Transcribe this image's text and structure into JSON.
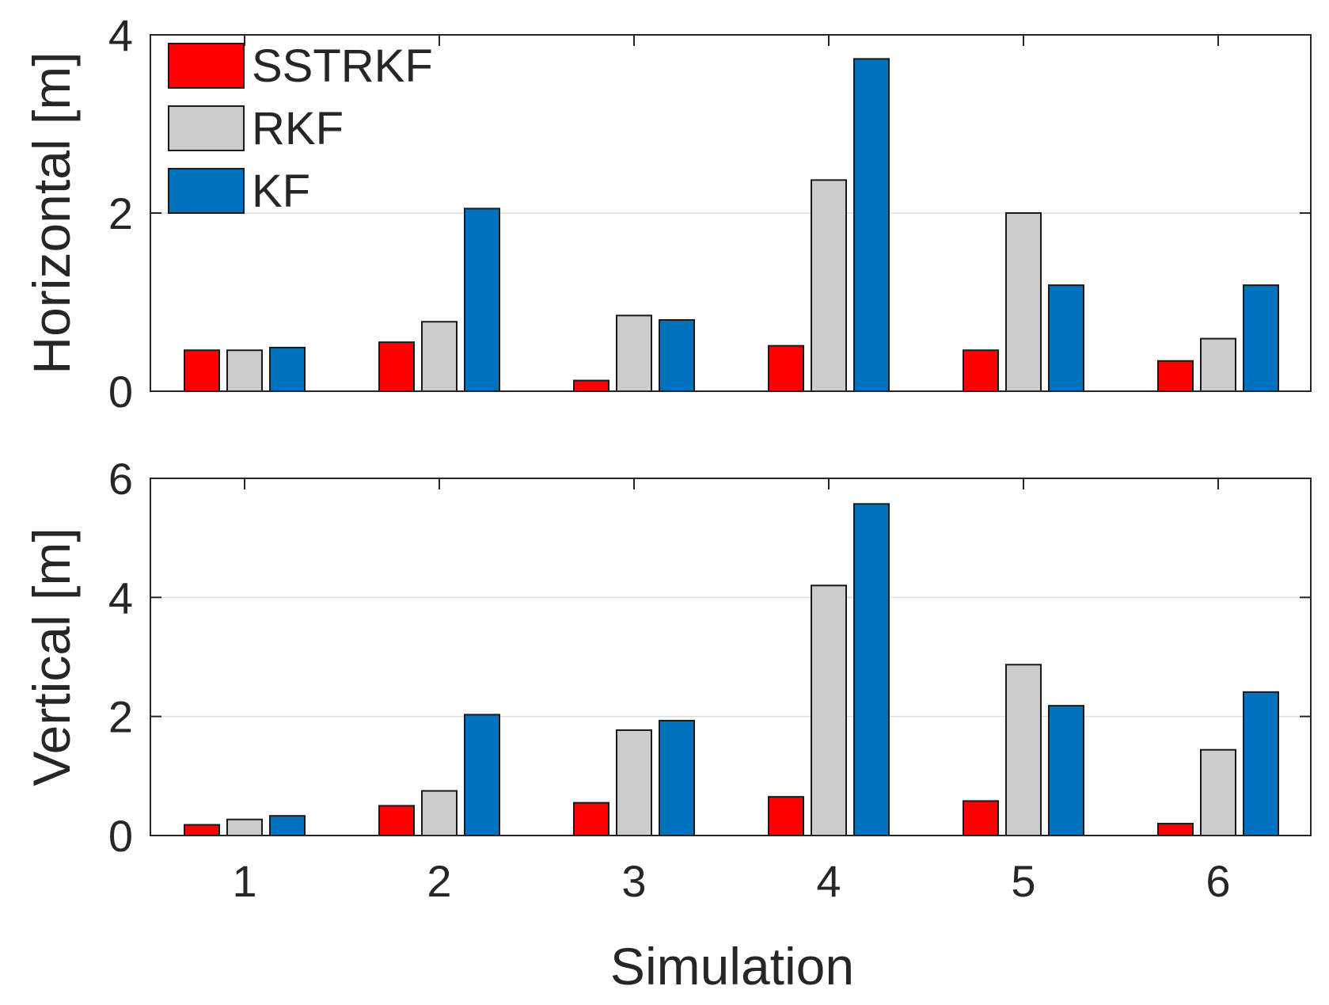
{
  "chart_data": [
    {
      "type": "bar",
      "panel": "top",
      "categories": [
        "1",
        "2",
        "3",
        "4",
        "5",
        "6"
      ],
      "series": [
        {
          "name": "SSTRKF",
          "color": "#ff0000",
          "values": [
            0.46,
            0.55,
            0.12,
            0.51,
            0.46,
            0.34
          ]
        },
        {
          "name": "RKF",
          "color": "#cccccc",
          "values": [
            0.46,
            0.78,
            0.85,
            2.37,
            2.0,
            0.59
          ]
        },
        {
          "name": "KF",
          "color": "#0072bd",
          "values": [
            0.49,
            2.05,
            0.8,
            3.73,
            1.19,
            1.19
          ]
        }
      ],
      "ylabel": "Horizontal [m]",
      "ylim": [
        0,
        4
      ],
      "yticks": [
        "0",
        "2",
        "4"
      ],
      "grid": true,
      "legend": {
        "position": "top-left",
        "entries": [
          "SSTRKF",
          "RKF",
          "KF"
        ]
      }
    },
    {
      "type": "bar",
      "panel": "bottom",
      "categories": [
        "1",
        "2",
        "3",
        "4",
        "5",
        "6"
      ],
      "series": [
        {
          "name": "SSTRKF",
          "color": "#ff0000",
          "values": [
            0.18,
            0.5,
            0.55,
            0.65,
            0.58,
            0.2
          ]
        },
        {
          "name": "RKF",
          "color": "#cccccc",
          "values": [
            0.27,
            0.75,
            1.77,
            4.2,
            2.87,
            1.44
          ]
        },
        {
          "name": "KF",
          "color": "#0072bd",
          "values": [
            0.33,
            2.03,
            1.93,
            5.57,
            2.18,
            2.41
          ]
        }
      ],
      "xlabel": "Simulation",
      "ylabel": "Vertical [m]",
      "ylim": [
        0,
        6
      ],
      "yticks": [
        "0",
        "2",
        "4",
        "6"
      ],
      "xticks": [
        "1",
        "2",
        "3",
        "4",
        "5",
        "6"
      ],
      "grid": true
    }
  ]
}
